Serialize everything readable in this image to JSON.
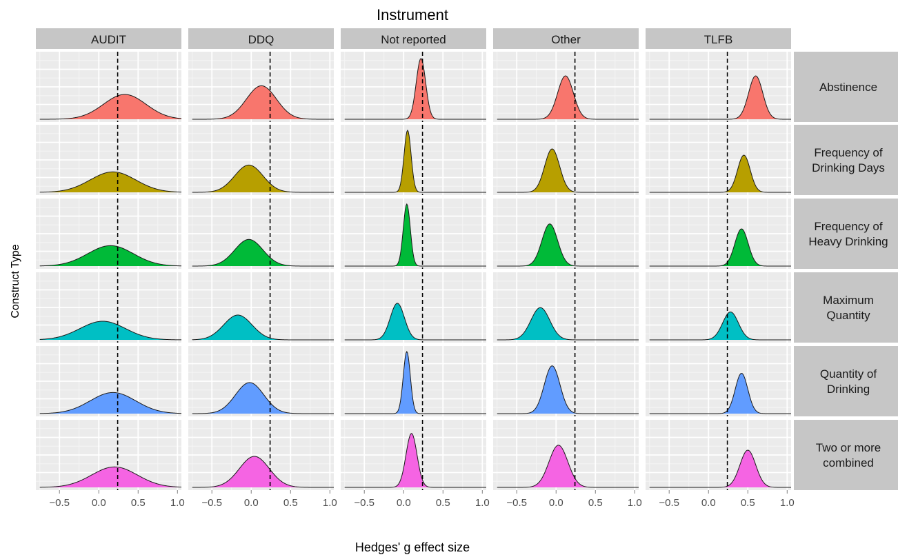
{
  "chart_data": {
    "type": "area",
    "title": "Instrument",
    "xlabel": "Hedges' g effect size",
    "ylabel": "Construct Type",
    "xlim": [
      -0.8,
      1.05
    ],
    "xticks": [
      -0.5,
      0.0,
      0.5,
      1.0
    ],
    "xtick_labels": [
      "−0.5",
      "0.0",
      "0.5",
      "1.0"
    ],
    "reference_line_x": 0.24,
    "grid": true,
    "panel_background": "#ebebeb",
    "strip_background": "#c6c6c6",
    "instruments": [
      "AUDIT",
      "DDQ",
      "Not reported",
      "Other",
      "TLFB"
    ],
    "construct_types": [
      {
        "lines": [
          "Abstinence"
        ],
        "color": "#f8766d"
      },
      {
        "lines": [
          "Frequency of",
          "Drinking Days"
        ],
        "color": "#b79f00"
      },
      {
        "lines": [
          "Frequency of",
          "Heavy Drinking"
        ],
        "color": "#00ba38"
      },
      {
        "lines": [
          "Maximum",
          "Quantity"
        ],
        "color": "#00bfc4"
      },
      {
        "lines": [
          "Quantity of",
          "Drinking"
        ],
        "color": "#619cff"
      },
      {
        "lines": [
          "Two or more",
          "combined"
        ],
        "color": "#f564e3"
      }
    ],
    "distributions": [
      [
        {
          "mean": 0.33,
          "sd": 0.27,
          "peak": 0.4
        },
        {
          "mean": 0.13,
          "sd": 0.19,
          "peak": 0.54
        },
        {
          "mean": 0.22,
          "sd": 0.06,
          "peak": 0.98
        },
        {
          "mean": 0.12,
          "sd": 0.1,
          "peak": 0.7
        },
        {
          "mean": 0.6,
          "sd": 0.09,
          "peak": 0.7
        }
      ],
      [
        {
          "mean": 0.18,
          "sd": 0.29,
          "peak": 0.33
        },
        {
          "mean": -0.03,
          "sd": 0.18,
          "peak": 0.44
        },
        {
          "mean": 0.05,
          "sd": 0.045,
          "peak": 1.0
        },
        {
          "mean": -0.05,
          "sd": 0.095,
          "peak": 0.7
        },
        {
          "mean": 0.45,
          "sd": 0.08,
          "peak": 0.6
        }
      ],
      [
        {
          "mean": 0.15,
          "sd": 0.29,
          "peak": 0.33
        },
        {
          "mean": -0.03,
          "sd": 0.18,
          "peak": 0.43
        },
        {
          "mean": 0.04,
          "sd": 0.045,
          "peak": 1.0
        },
        {
          "mean": -0.08,
          "sd": 0.1,
          "peak": 0.68
        },
        {
          "mean": 0.42,
          "sd": 0.085,
          "peak": 0.6
        }
      ],
      [
        {
          "mean": 0.05,
          "sd": 0.29,
          "peak": 0.3
        },
        {
          "mean": -0.17,
          "sd": 0.18,
          "peak": 0.4
        },
        {
          "mean": -0.08,
          "sd": 0.09,
          "peak": 0.59
        },
        {
          "mean": -0.2,
          "sd": 0.12,
          "peak": 0.52
        },
        {
          "mean": 0.28,
          "sd": 0.1,
          "peak": 0.45
        }
      ],
      [
        {
          "mean": 0.18,
          "sd": 0.29,
          "peak": 0.34
        },
        {
          "mean": -0.02,
          "sd": 0.18,
          "peak": 0.5
        },
        {
          "mean": 0.04,
          "sd": 0.045,
          "peak": 1.0
        },
        {
          "mean": -0.05,
          "sd": 0.1,
          "peak": 0.77
        },
        {
          "mean": 0.42,
          "sd": 0.08,
          "peak": 0.65
        }
      ],
      [
        {
          "mean": 0.2,
          "sd": 0.29,
          "peak": 0.33
        },
        {
          "mean": 0.04,
          "sd": 0.19,
          "peak": 0.5
        },
        {
          "mean": 0.1,
          "sd": 0.07,
          "peak": 0.87
        },
        {
          "mean": 0.03,
          "sd": 0.12,
          "peak": 0.68
        },
        {
          "mean": 0.5,
          "sd": 0.1,
          "peak": 0.6
        }
      ]
    ]
  }
}
